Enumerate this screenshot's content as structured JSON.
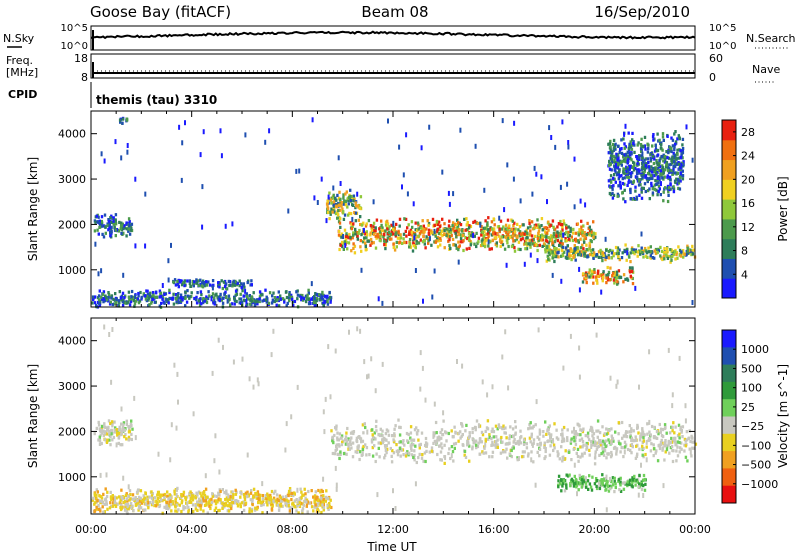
{
  "header": {
    "station": "Goose Bay (fitACF)",
    "beam": "Beam 08",
    "date": "16/Sep/2010"
  },
  "noise_panel": {
    "left_label": "N.Sky",
    "right_label": "N.Search",
    "left_ticks": [
      "10^5",
      "10^0"
    ],
    "right_ticks": [
      "10^5",
      "10^0"
    ]
  },
  "freq_panel": {
    "left_label_1": "Freq.",
    "left_label_2": "[MHz]",
    "right_label": "Nave",
    "left_ticks": [
      "18",
      "8"
    ],
    "right_ticks": [
      "60",
      "0"
    ]
  },
  "cpid": {
    "label": "CPID",
    "text": "themis (tau) 3310"
  },
  "x_axis": {
    "label": "Time UT",
    "ticks": [
      "00:00",
      "04:00",
      "08:00",
      "12:00",
      "16:00",
      "20:00",
      "00:00"
    ]
  },
  "colors": {
    "power_scale": [
      "#1a1aff",
      "#1f4fb0",
      "#2e7d5a",
      "#4c9a4c",
      "#8fc83a",
      "#f0d020",
      "#f0a020",
      "#f07010",
      "#e82010"
    ],
    "velocity_scale": [
      "#1a1aff",
      "#1f4fb0",
      "#2e7d5a",
      "#2f9a3a",
      "#6fd05a",
      "#c8c8c0",
      "#e8d020",
      "#f0a020",
      "#f06010",
      "#e81010"
    ]
  },
  "chart_data": [
    {
      "type": "heatmap",
      "title": "Power",
      "ylabel": "Slant Range [km]",
      "xlabel": "Time UT",
      "xlim": [
        0,
        24
      ],
      "ylim": [
        180,
        4500
      ],
      "y_ticks": [
        "1000",
        "2000",
        "3000",
        "4000"
      ],
      "colorbar": {
        "label": "Power [dB]",
        "ticks": [
          "4",
          "8",
          "12",
          "16",
          "20",
          "24",
          "28"
        ],
        "range": [
          0,
          30
        ]
      },
      "echo_regions": [
        {
          "t_start": 0.1,
          "t_end": 1.6,
          "range_start": 1700,
          "range_end": 2300,
          "level": "low"
        },
        {
          "t_start": 1.0,
          "t_end": 1.6,
          "range_start": 4250,
          "range_end": 4400,
          "level": "low"
        },
        {
          "t_start": 0.0,
          "t_end": 9.5,
          "range_start": 200,
          "range_end": 600,
          "level": "low"
        },
        {
          "t_start": 3.2,
          "t_end": 6.5,
          "range_start": 600,
          "range_end": 850,
          "level": "low"
        },
        {
          "t_start": 9.3,
          "t_end": 10.7,
          "range_start": 2100,
          "range_end": 2800,
          "level": "mid"
        },
        {
          "t_start": 9.8,
          "t_end": 20.0,
          "range_start": 1400,
          "range_end": 2200,
          "level": "high"
        },
        {
          "t_start": 18.0,
          "t_end": 24.0,
          "range_start": 1200,
          "range_end": 1600,
          "level": "mid"
        },
        {
          "t_start": 19.5,
          "t_end": 21.5,
          "range_start": 700,
          "range_end": 1100,
          "level": "high"
        },
        {
          "t_start": 20.5,
          "t_end": 23.5,
          "range_start": 2500,
          "range_end": 4100,
          "level": "low"
        }
      ]
    },
    {
      "type": "heatmap",
      "title": "Velocity",
      "ylabel": "Slant Range [km]",
      "xlabel": "Time UT",
      "xlim": [
        0,
        24
      ],
      "ylim": [
        180,
        4500
      ],
      "y_ticks": [
        "1000",
        "2000",
        "3000",
        "4000"
      ],
      "colorbar": {
        "label": "Velocity [m s^-1]",
        "ticks": [
          "1000",
          "500",
          "100",
          "25",
          "−25",
          "−100",
          "−500",
          "−1000"
        ]
      },
      "echo_regions": [
        {
          "t_start": 0.1,
          "t_end": 1.6,
          "range_start": 1700,
          "range_end": 2300,
          "velocity": "near zero"
        },
        {
          "t_start": 0.0,
          "t_end": 9.5,
          "range_start": 200,
          "range_end": 800,
          "velocity": "slightly negative"
        },
        {
          "t_start": 9.5,
          "t_end": 24.0,
          "range_start": 1300,
          "range_end": 2300,
          "velocity": "near zero"
        },
        {
          "t_start": 18.5,
          "t_end": 22.0,
          "range_start": 700,
          "range_end": 1100,
          "velocity": "positive"
        }
      ]
    }
  ]
}
